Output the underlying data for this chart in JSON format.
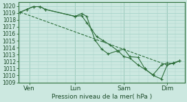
{
  "bg_color": "#cce8e0",
  "grid_color": "#a8d4ca",
  "line_color": "#2d6e3a",
  "marker_color": "#2d6e3a",
  "xlabel": "Pression niveau de la mer( hPa )",
  "ylim": [
    1009,
    1020.5
  ],
  "xlim": [
    0,
    1.0
  ],
  "yticks": [
    1009,
    1010,
    1011,
    1012,
    1013,
    1014,
    1015,
    1016,
    1017,
    1018,
    1019,
    1020
  ],
  "xtick_labels": [
    "Ven",
    "Lun",
    "Sam",
    "Dim"
  ],
  "xtick_positions": [
    0.065,
    0.34,
    0.635,
    0.895
  ],
  "series": [
    {
      "x": [
        0.01,
        0.05,
        0.09,
        0.13,
        0.16,
        0.34,
        0.38,
        0.41,
        0.46,
        0.5,
        0.54,
        0.59,
        0.635,
        0.67,
        0.72,
        0.76,
        0.81,
        0.86,
        0.895,
        0.93,
        0.97
      ],
      "y": [
        1019.1,
        1019.5,
        1019.9,
        1019.9,
        1019.5,
        1018.5,
        1018.9,
        1018.5,
        1015.1,
        1013.8,
        1013.1,
        1013.5,
        1013.8,
        1012.7,
        1012.6,
        1011.0,
        1010.0,
        1009.5,
        1011.5,
        1011.8,
        1012.1
      ]
    },
    {
      "x": [
        0.01,
        0.05,
        0.09,
        0.13,
        0.16,
        0.34,
        0.38,
        0.41,
        0.44,
        0.47,
        0.51,
        0.55,
        0.6,
        0.635,
        0.67,
        0.72,
        0.76,
        0.81,
        0.86,
        0.895,
        0.93,
        0.97
      ],
      "y": [
        1019.1,
        1019.5,
        1019.9,
        1019.9,
        1019.5,
        1018.5,
        1018.6,
        1017.6,
        1016.6,
        1015.6,
        1015.0,
        1014.4,
        1013.5,
        1012.7,
        1012.5,
        1011.5,
        1010.9,
        1010.1,
        1011.5,
        1011.8,
        1011.7,
        1012.1
      ]
    },
    {
      "x": [
        0.01,
        0.895,
        0.97
      ],
      "y": [
        1019.1,
        1011.5,
        1012.1
      ]
    }
  ]
}
